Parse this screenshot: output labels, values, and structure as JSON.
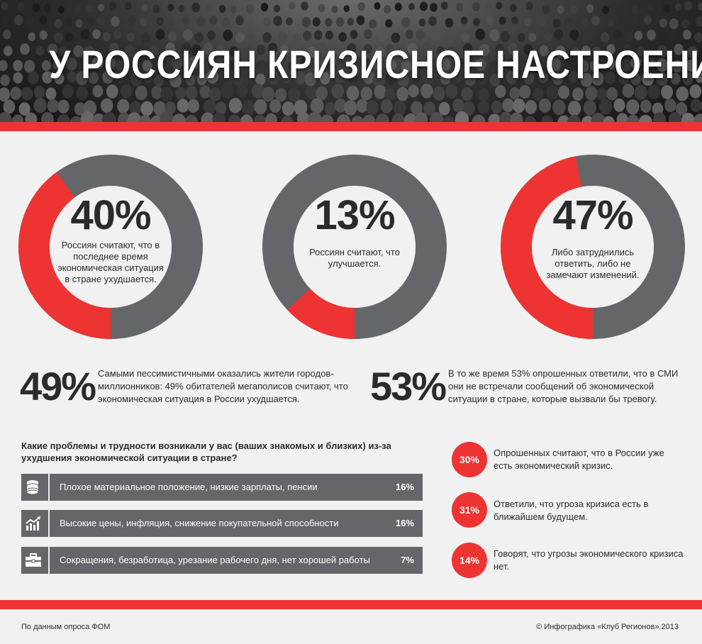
{
  "header": {
    "title": "У РОССИЯН КРИЗИСНОЕ НАСТРОЕНИЕ"
  },
  "colors": {
    "accent": "#ee3333",
    "dark": "#656669",
    "background": "#f1f1f1"
  },
  "chart_data": [
    {
      "type": "pie",
      "label": "40%",
      "value": 40,
      "description": "Россиян считают, что в последнее время экономическая ситуация в стране ухудшается."
    },
    {
      "type": "pie",
      "label": "13%",
      "value": 13,
      "description": "Россиян считают, что улучшается."
    },
    {
      "type": "pie",
      "label": "47%",
      "value": 47,
      "description": "Либо затруднились ответить, либо не замечают изменений."
    },
    {
      "type": "table",
      "title": "Какие проблемы и трудности возникали у вас (ваших знакомых и близких) из-за ухудшения экономической ситуации в стране?",
      "rows": [
        {
          "icon": "coins-icon",
          "label": "Плохое материальное положение, низкие зарплаты, пенсии",
          "value": "16%"
        },
        {
          "icon": "rising-chart-icon",
          "label": "Высокие цены, инфляция, снижение покупательной способности",
          "value": "16%"
        },
        {
          "icon": "briefcase-icon",
          "label": "Сокращения, безработица, урезание рабочего дня, нет хорошей работы",
          "value": "7%"
        }
      ]
    }
  ],
  "big_stats": [
    {
      "value": "49%",
      "text": "Самыми пессимистичными оказались жители городов-миллионников: 49% обитателей мегаполисов считают, что экономическая ситуация в России ухудшается."
    },
    {
      "value": "53%",
      "text": "В то же время 53% опрошенных ответили, что в СМИ они не встречали сообщений об экономической ситуации в стране, которые вызвали бы тревогу."
    }
  ],
  "side_stats": [
    {
      "value": "30%",
      "text": "Опрошенных считают, что в России уже есть экономический кризис."
    },
    {
      "value": "31%",
      "text": "Ответили, что угроза кризиса есть в ближайшем будущем."
    },
    {
      "value": "14%",
      "text": "Говорят, что угрозы экономического кризиса нет."
    }
  ],
  "footer": {
    "source": "По данным опроса ФОМ",
    "credit": "© Инфографика «Клуб Регионов».2013"
  }
}
